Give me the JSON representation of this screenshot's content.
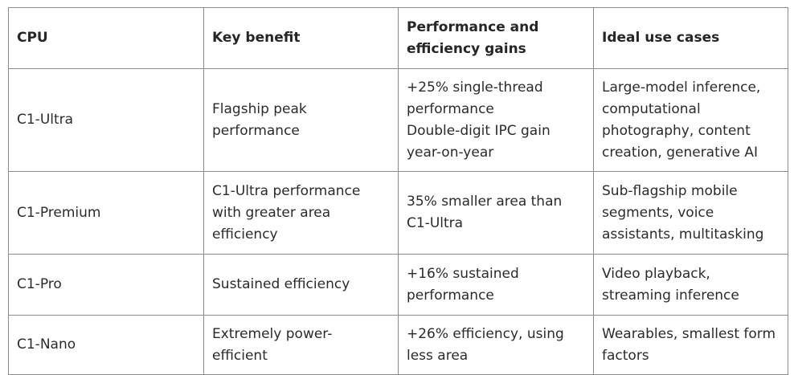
{
  "table": {
    "headers": [
      "CPU",
      "Key benefit",
      [
        "Performance and",
        "efficiency gains"
      ],
      "Ideal use cases"
    ],
    "rows": [
      {
        "cpu": "C1-Ultra",
        "benefit": [
          "Flagship peak",
          "performance"
        ],
        "gains": [
          "+25% single-thread",
          "performance",
          "Double-digit IPC gain",
          "year-on-year"
        ],
        "uses": [
          "Large-model inference,",
          "computational",
          "photography, content",
          "creation, generative AI"
        ]
      },
      {
        "cpu": "C1-Premium",
        "benefit": [
          "C1-Ultra performance",
          "with greater area",
          "efficiency"
        ],
        "gains": [
          "35% smaller area than",
          "C1-Ultra"
        ],
        "uses": [
          "Sub-flagship mobile",
          "segments, voice",
          "assistants, multitasking"
        ]
      },
      {
        "cpu": "C1-Pro",
        "benefit": [
          "Sustained efficiency"
        ],
        "gains": [
          "+16% sustained",
          "performance"
        ],
        "uses": [
          "Video playback,",
          "streaming inference"
        ]
      },
      {
        "cpu": "C1-Nano",
        "benefit": [
          "Extremely power-",
          "efficient"
        ],
        "gains": [
          "+26% efficiency, using",
          "less area"
        ],
        "uses": [
          "Wearables, smallest form",
          "factors"
        ]
      }
    ]
  }
}
